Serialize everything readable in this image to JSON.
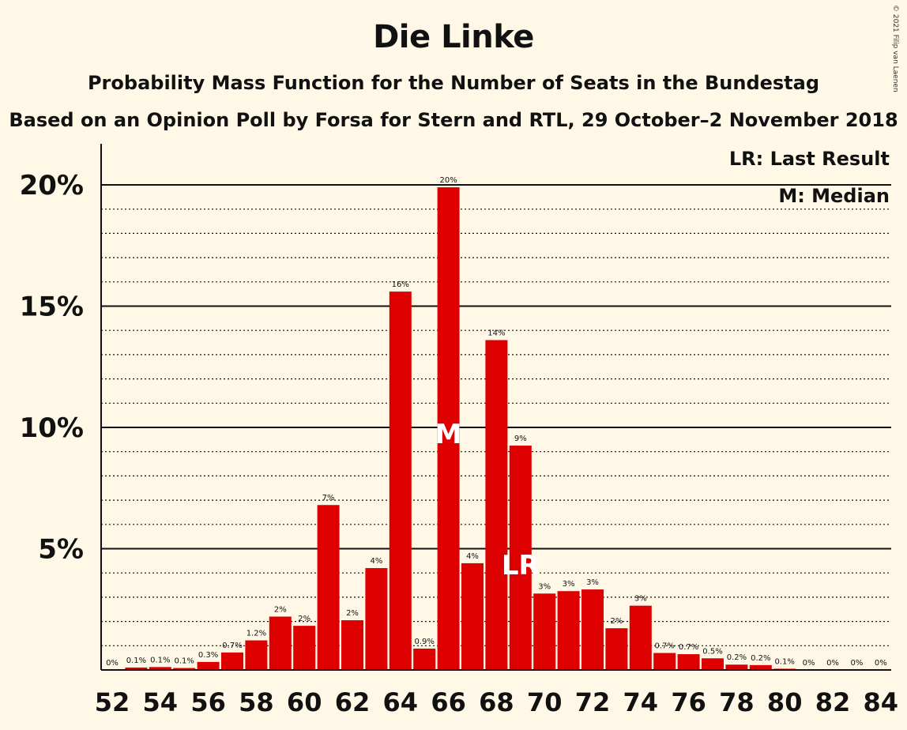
{
  "chart_data": {
    "type": "bar",
    "title": "Die Linke",
    "subtitle": "Probability Mass Function for the Number of Seats in the Bundestag",
    "subtitle2": "Based on an Opinion Poll by Forsa for Stern and RTL, 29 October–2 November 2018",
    "copyright": "© 2021 Filip van Laenen",
    "legend": [
      "LR: Last Result",
      "M: Median"
    ],
    "legend_position": "top-right",
    "bar_color": "#dd0000",
    "ylim": [
      0,
      21.5
    ],
    "yticks": [
      {
        "value": 5,
        "label": "5%"
      },
      {
        "value": 10,
        "label": "10%"
      },
      {
        "value": 15,
        "label": "15%"
      },
      {
        "value": 20,
        "label": "20%"
      }
    ],
    "minor_grid_step": 1,
    "xticks": [
      52,
      54,
      56,
      58,
      60,
      62,
      64,
      66,
      68,
      70,
      72,
      74,
      76,
      78,
      80,
      82,
      84
    ],
    "median_seat": 66,
    "median_marker": "M",
    "last_result_seat": 69,
    "last_result_marker": "LR",
    "bars": [
      {
        "seat": 52,
        "value": 0,
        "label": "0%"
      },
      {
        "seat": 53,
        "value": 0.1,
        "label": "0.1%"
      },
      {
        "seat": 54,
        "value": 0.12,
        "label": "0.1%"
      },
      {
        "seat": 55,
        "value": 0.08,
        "label": "0.1%"
      },
      {
        "seat": 56,
        "value": 0.33,
        "label": "0.3%"
      },
      {
        "seat": 57,
        "value": 0.72,
        "label": "0.7%"
      },
      {
        "seat": 58,
        "value": 1.22,
        "label": "1.2%"
      },
      {
        "seat": 59,
        "value": 2.2,
        "label": "2%"
      },
      {
        "seat": 60,
        "value": 1.82,
        "label": "2%"
      },
      {
        "seat": 61,
        "value": 6.8,
        "label": "7%"
      },
      {
        "seat": 62,
        "value": 2.05,
        "label": "2%"
      },
      {
        "seat": 63,
        "value": 4.2,
        "label": "4%"
      },
      {
        "seat": 64,
        "value": 15.6,
        "label": "16%"
      },
      {
        "seat": 65,
        "value": 0.88,
        "label": "0.9%"
      },
      {
        "seat": 66,
        "value": 19.9,
        "label": "20%"
      },
      {
        "seat": 67,
        "value": 4.4,
        "label": "4%"
      },
      {
        "seat": 68,
        "value": 13.6,
        "label": "14%"
      },
      {
        "seat": 69,
        "value": 9.25,
        "label": "9%"
      },
      {
        "seat": 70,
        "value": 3.15,
        "label": "3%"
      },
      {
        "seat": 71,
        "value": 3.25,
        "label": "3%"
      },
      {
        "seat": 72,
        "value": 3.32,
        "label": "3%"
      },
      {
        "seat": 73,
        "value": 1.72,
        "label": "2%"
      },
      {
        "seat": 74,
        "value": 2.65,
        "label": "3%"
      },
      {
        "seat": 75,
        "value": 0.7,
        "label": "0.7%"
      },
      {
        "seat": 76,
        "value": 0.65,
        "label": "0.7%"
      },
      {
        "seat": 77,
        "value": 0.48,
        "label": "0.5%"
      },
      {
        "seat": 78,
        "value": 0.22,
        "label": "0.2%"
      },
      {
        "seat": 79,
        "value": 0.2,
        "label": "0.2%"
      },
      {
        "seat": 80,
        "value": 0.05,
        "label": "0.1%"
      },
      {
        "seat": 81,
        "value": 0,
        "label": "0%"
      },
      {
        "seat": 82,
        "value": 0,
        "label": "0%"
      },
      {
        "seat": 83,
        "value": 0,
        "label": "0%"
      },
      {
        "seat": 84,
        "value": 0,
        "label": "0%"
      }
    ]
  }
}
